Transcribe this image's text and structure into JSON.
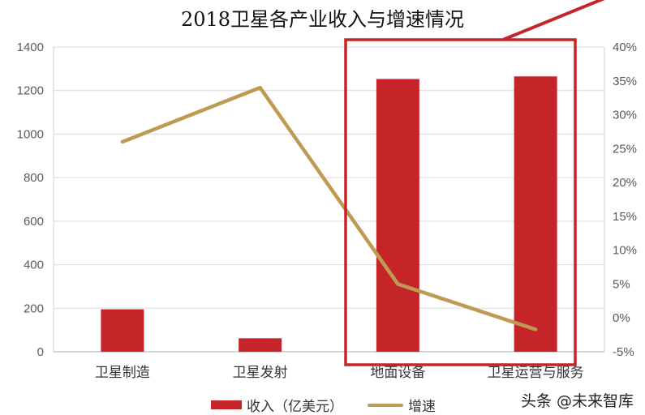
{
  "title": "2018卫星各产业收入与增速情况",
  "legend": {
    "bar_label": "收入（亿美元）",
    "line_label": "增速"
  },
  "watermark": "头条 @未来智库",
  "colors": {
    "bar": "#C52528",
    "line": "#BF9A52",
    "highlight_box": "#C52528",
    "grid": "#D9D9D9"
  },
  "chart_data": {
    "type": "bar",
    "title": "2018卫星各产业收入与增速情况",
    "categories": [
      "卫星制造",
      "卫星发射",
      "地面设备",
      "卫星运营与服务"
    ],
    "series": [
      {
        "name": "收入（亿美元）",
        "type": "bar",
        "axis": "left",
        "values": [
          195,
          62,
          1253,
          1265
        ]
      },
      {
        "name": "增速",
        "type": "line",
        "axis": "right",
        "values": [
          0.26,
          0.34,
          0.05,
          -0.017
        ]
      }
    ],
    "left_axis": {
      "ylim": [
        0,
        1400
      ],
      "ticks": [
        "0",
        "200",
        "400",
        "600",
        "800",
        "1000",
        "1200",
        "1400"
      ]
    },
    "right_axis": {
      "ylim": [
        -0.05,
        0.4
      ],
      "ticks": [
        "-5%",
        "0%",
        "5%",
        "10%",
        "15%",
        "20%",
        "25%",
        "30%",
        "35%",
        "40%"
      ]
    },
    "xlabel": "",
    "ylabel": "",
    "grid": true,
    "legend_position": "bottom",
    "annotation": "red highlight box around 地面设备 and 卫星运营与服务 with arrow line pointing up-right"
  }
}
